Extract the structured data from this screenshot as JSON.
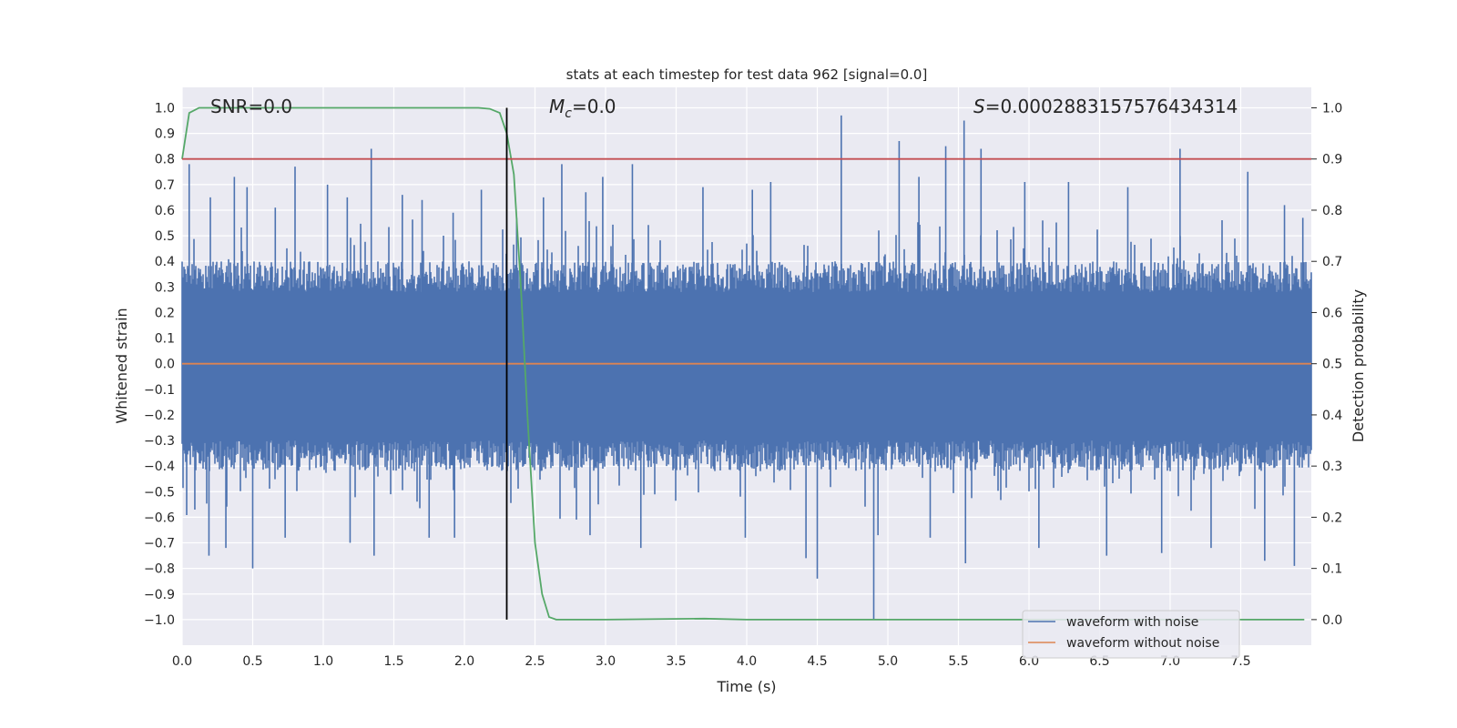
{
  "chart_data": {
    "type": "line",
    "title": "stats at each timestep for test data 962 [signal=0.0]",
    "xlabel": "Time (s)",
    "ylabel_left": "Whitened strain",
    "ylabel_right": "Detection probability",
    "xlim": [
      0.0,
      8.0
    ],
    "ylim_left": [
      -1.1,
      1.08
    ],
    "ylim_right": [
      -0.05,
      1.04
    ],
    "x_ticks": [
      "0.0",
      "0.5",
      "1.0",
      "1.5",
      "2.0",
      "2.5",
      "3.0",
      "3.5",
      "4.0",
      "4.5",
      "5.0",
      "5.5",
      "6.0",
      "6.5",
      "7.0",
      "7.5"
    ],
    "y_left_ticks": [
      "1.0",
      "0.9",
      "0.8",
      "0.7",
      "0.6",
      "0.5",
      "0.4",
      "0.3",
      "0.2",
      "0.1",
      "0.0",
      "-0.1",
      "-0.2",
      "-0.3",
      "-0.4",
      "-0.5",
      "-0.6",
      "-0.7",
      "-0.8",
      "-0.9",
      "-1.0"
    ],
    "y_right_ticks": [
      "1.0",
      "0.9",
      "0.8",
      "0.7",
      "0.6",
      "0.5",
      "0.4",
      "0.3",
      "0.2",
      "0.1",
      "0.0"
    ],
    "annotations": {
      "snr": "SNR=0.0",
      "mc_symbol": "M",
      "mc_sub": "c",
      "mc_value": "=0.0",
      "s_symbol": "S",
      "s_value": "=0.0002883157576434314"
    },
    "legend": {
      "placement": "lower-right",
      "entries": [
        "waveform with noise",
        "waveform without noise"
      ]
    },
    "series": [
      {
        "name": "waveform with noise",
        "color": "#4c72b0",
        "axis": "left",
        "envelope_typical": [
          -0.42,
          0.4
        ],
        "spikes": [
          [
            0.05,
            0.78
          ],
          [
            0.09,
            -0.57
          ],
          [
            0.2,
            0.65
          ],
          [
            0.19,
            -0.75
          ],
          [
            0.37,
            0.73
          ],
          [
            0.31,
            -0.72
          ],
          [
            0.46,
            0.69
          ],
          [
            0.5,
            -0.8
          ],
          [
            0.66,
            0.61
          ],
          [
            0.73,
            -0.68
          ],
          [
            0.8,
            0.77
          ],
          [
            1.03,
            0.7
          ],
          [
            1.17,
            0.65
          ],
          [
            1.19,
            -0.7
          ],
          [
            1.34,
            0.84
          ],
          [
            1.36,
            -0.75
          ],
          [
            1.56,
            0.66
          ],
          [
            1.7,
            0.64
          ],
          [
            1.75,
            -0.68
          ],
          [
            1.92,
            0.59
          ],
          [
            1.93,
            -0.68
          ],
          [
            2.12,
            0.68
          ],
          [
            2.37,
            0.57
          ],
          [
            2.56,
            0.65
          ],
          [
            2.69,
            0.78
          ],
          [
            2.86,
            0.67
          ],
          [
            2.89,
            -0.67
          ],
          [
            2.98,
            0.73
          ],
          [
            3.19,
            0.78
          ],
          [
            3.25,
            -0.72
          ],
          [
            3.69,
            0.69
          ],
          [
            3.99,
            -0.68
          ],
          [
            4.04,
            0.68
          ],
          [
            4.17,
            0.71
          ],
          [
            4.42,
            -0.76
          ],
          [
            4.5,
            -0.84
          ],
          [
            4.67,
            0.97
          ],
          [
            4.9,
            -1.0
          ],
          [
            4.93,
            -0.67
          ],
          [
            5.08,
            0.87
          ],
          [
            5.22,
            0.73
          ],
          [
            5.3,
            -0.68
          ],
          [
            5.41,
            0.85
          ],
          [
            5.54,
            0.95
          ],
          [
            5.55,
            -0.78
          ],
          [
            5.66,
            0.84
          ],
          [
            5.97,
            0.71
          ],
          [
            6.07,
            -0.72
          ],
          [
            6.28,
            0.71
          ],
          [
            6.55,
            -0.75
          ],
          [
            6.7,
            0.69
          ],
          [
            6.94,
            -0.74
          ],
          [
            7.07,
            0.84
          ],
          [
            7.29,
            -0.72
          ],
          [
            7.55,
            0.75
          ],
          [
            7.67,
            -0.77
          ],
          [
            7.81,
            0.62
          ],
          [
            7.88,
            -0.79
          ],
          [
            7.94,
            0.57
          ]
        ]
      },
      {
        "name": "waveform without noise",
        "color": "#dd8452",
        "axis": "left",
        "x": [
          0.0,
          8.0
        ],
        "y": [
          0.0,
          0.0
        ]
      },
      {
        "name": "",
        "color": "#55a868",
        "axis": "right",
        "x": [
          0.0,
          0.05,
          0.12,
          0.3,
          1.0,
          1.5,
          2.0,
          2.1,
          2.18,
          2.25,
          2.3,
          2.35,
          2.4,
          2.45,
          2.5,
          2.55,
          2.6,
          2.65,
          2.7,
          3.0,
          3.7,
          4.0,
          5.0,
          6.0,
          7.0,
          7.95
        ],
        "y": [
          0.9,
          0.99,
          1.0,
          1.0,
          1.0,
          1.0,
          1.0,
          1.0,
          0.998,
          0.99,
          0.95,
          0.87,
          0.65,
          0.38,
          0.15,
          0.05,
          0.005,
          0.0,
          0.0,
          0.0,
          0.002,
          0.0,
          0.0,
          0.0,
          0.0,
          0.0
        ]
      },
      {
        "name": "",
        "color": "#c44e52",
        "axis": "right",
        "x": [
          0.0,
          8.0
        ],
        "y": [
          0.9,
          0.9
        ]
      }
    ],
    "vertical_marker": {
      "x": 2.3,
      "color": "#000000"
    }
  }
}
